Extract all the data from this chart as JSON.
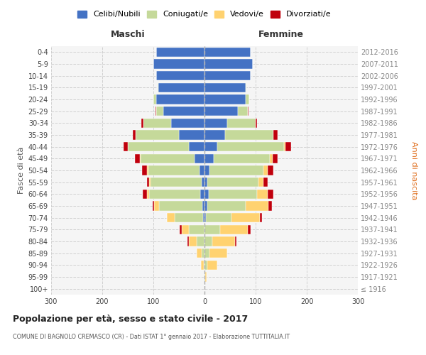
{
  "age_groups": [
    "100+",
    "95-99",
    "90-94",
    "85-89",
    "80-84",
    "75-79",
    "70-74",
    "65-69",
    "60-64",
    "55-59",
    "50-54",
    "45-49",
    "40-44",
    "35-39",
    "30-34",
    "25-29",
    "20-24",
    "15-19",
    "10-14",
    "5-9",
    "0-4"
  ],
  "birth_years": [
    "≤ 1916",
    "1917-1921",
    "1922-1926",
    "1927-1931",
    "1932-1936",
    "1937-1941",
    "1942-1946",
    "1947-1951",
    "1952-1956",
    "1957-1961",
    "1962-1966",
    "1967-1971",
    "1972-1976",
    "1977-1981",
    "1982-1986",
    "1987-1991",
    "1992-1996",
    "1997-2001",
    "2002-2006",
    "2007-2011",
    "2012-2016"
  ],
  "male": {
    "single": [
      0,
      0,
      0,
      0,
      0,
      0,
      3,
      4,
      8,
      5,
      10,
      20,
      30,
      50,
      65,
      80,
      95,
      90,
      95,
      100,
      95
    ],
    "married": [
      0,
      0,
      2,
      5,
      15,
      30,
      55,
      85,
      100,
      100,
      100,
      105,
      120,
      85,
      55,
      15,
      5,
      2,
      0,
      0,
      0
    ],
    "widowed": [
      0,
      0,
      5,
      10,
      15,
      15,
      15,
      10,
      5,
      3,
      2,
      1,
      0,
      0,
      0,
      0,
      0,
      0,
      0,
      0,
      0
    ],
    "divorced": [
      0,
      0,
      0,
      0,
      3,
      3,
      0,
      2,
      8,
      5,
      10,
      10,
      8,
      5,
      3,
      1,
      0,
      0,
      0,
      0,
      0
    ]
  },
  "female": {
    "single": [
      0,
      0,
      0,
      0,
      0,
      0,
      3,
      5,
      8,
      5,
      10,
      18,
      25,
      40,
      45,
      65,
      80,
      80,
      90,
      95,
      90
    ],
    "married": [
      0,
      2,
      5,
      10,
      15,
      30,
      50,
      75,
      95,
      100,
      105,
      110,
      130,
      95,
      55,
      20,
      8,
      2,
      0,
      0,
      0
    ],
    "widowed": [
      0,
      2,
      20,
      35,
      45,
      55,
      55,
      45,
      20,
      10,
      8,
      5,
      3,
      0,
      0,
      0,
      0,
      0,
      0,
      0,
      0
    ],
    "divorced": [
      0,
      0,
      0,
      0,
      3,
      5,
      5,
      7,
      12,
      8,
      12,
      10,
      12,
      8,
      3,
      1,
      0,
      0,
      0,
      0,
      0
    ]
  },
  "colors": {
    "single": "#4472C4",
    "married": "#C5D99A",
    "widowed": "#FFD270",
    "divorced": "#C0000C"
  },
  "legend_labels": [
    "Celibi/Nubili",
    "Coniugati/e",
    "Vedovi/e",
    "Divorziati/e"
  ],
  "title": "Popolazione per età, sesso e stato civile - 2017",
  "subtitle": "COMUNE DI BAGNOLO CREMASCO (CR) - Dati ISTAT 1° gennaio 2017 - Elaborazione TUTTITALIA.IT",
  "xlabel_left": "Maschi",
  "xlabel_right": "Femmine",
  "ylabel_left": "Fasce di età",
  "ylabel_right": "Anni di nascita",
  "xlim": 300,
  "background_color": "#ffffff",
  "grid_color": "#cccccc"
}
